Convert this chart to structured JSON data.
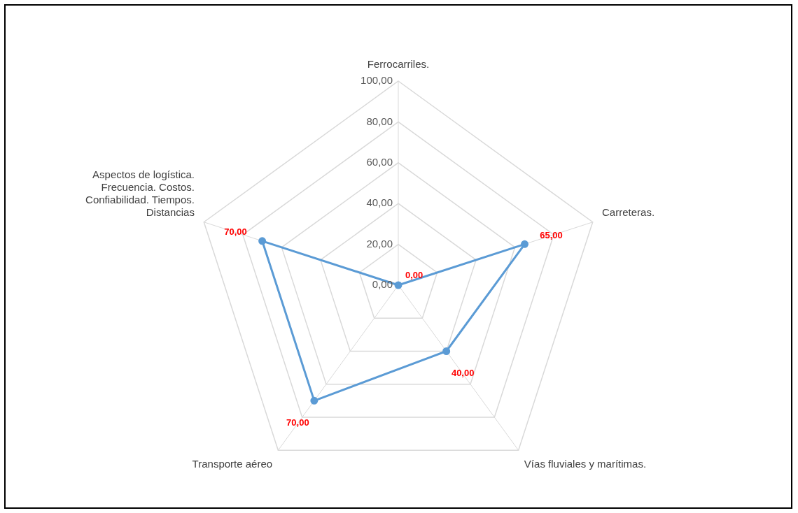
{
  "chart_data": {
    "type": "radar",
    "categories": [
      "Ferrocarriles.",
      "Carreteras.",
      "Vías fluviales y marítimas.",
      "Transporte aéreo",
      "Aspectos de logística. Frecuencia. Costos. Confiabilidad. Tiempos. Distancias"
    ],
    "series": [
      {
        "color": "#5b9bd5",
        "values": [
          0,
          65,
          40,
          70,
          70
        ],
        "value_labels": [
          "0,00",
          "65,00",
          "40,00",
          "70,00",
          "70,00"
        ]
      }
    ],
    "ylim": [
      0,
      100
    ],
    "yticks": [
      {
        "value": 0,
        "label": "0,00"
      },
      {
        "value": 20,
        "label": "20,00"
      },
      {
        "value": 40,
        "label": "40,00"
      },
      {
        "value": 60,
        "label": "60,00"
      },
      {
        "value": 80,
        "label": "80,00"
      },
      {
        "value": 100,
        "label": "100,00"
      }
    ],
    "grid": true,
    "legend": false,
    "marker": "circle",
    "line_style": "solid"
  }
}
